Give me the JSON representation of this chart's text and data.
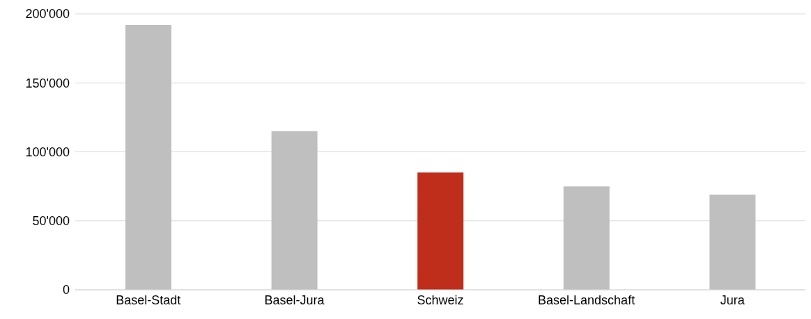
{
  "chart_data": {
    "type": "bar",
    "categories": [
      "Basel-Stadt",
      "Basel-Jura",
      "Schweiz",
      "Basel-Landschaft",
      "Jura"
    ],
    "values": [
      192000,
      115000,
      85000,
      75000,
      69000
    ],
    "colors": [
      "#bfbfbf",
      "#bfbfbf",
      "#bf2e1a",
      "#bfbfbf",
      "#bfbfbf"
    ],
    "ylim": [
      0,
      200000
    ],
    "yticks": [
      {
        "value": 0,
        "label": "0"
      },
      {
        "value": 50000,
        "label": "50'000"
      },
      {
        "value": 100000,
        "label": "100'000"
      },
      {
        "value": 150000,
        "label": "150'000"
      },
      {
        "value": 200000,
        "label": "200'000"
      }
    ],
    "grid": "y"
  }
}
